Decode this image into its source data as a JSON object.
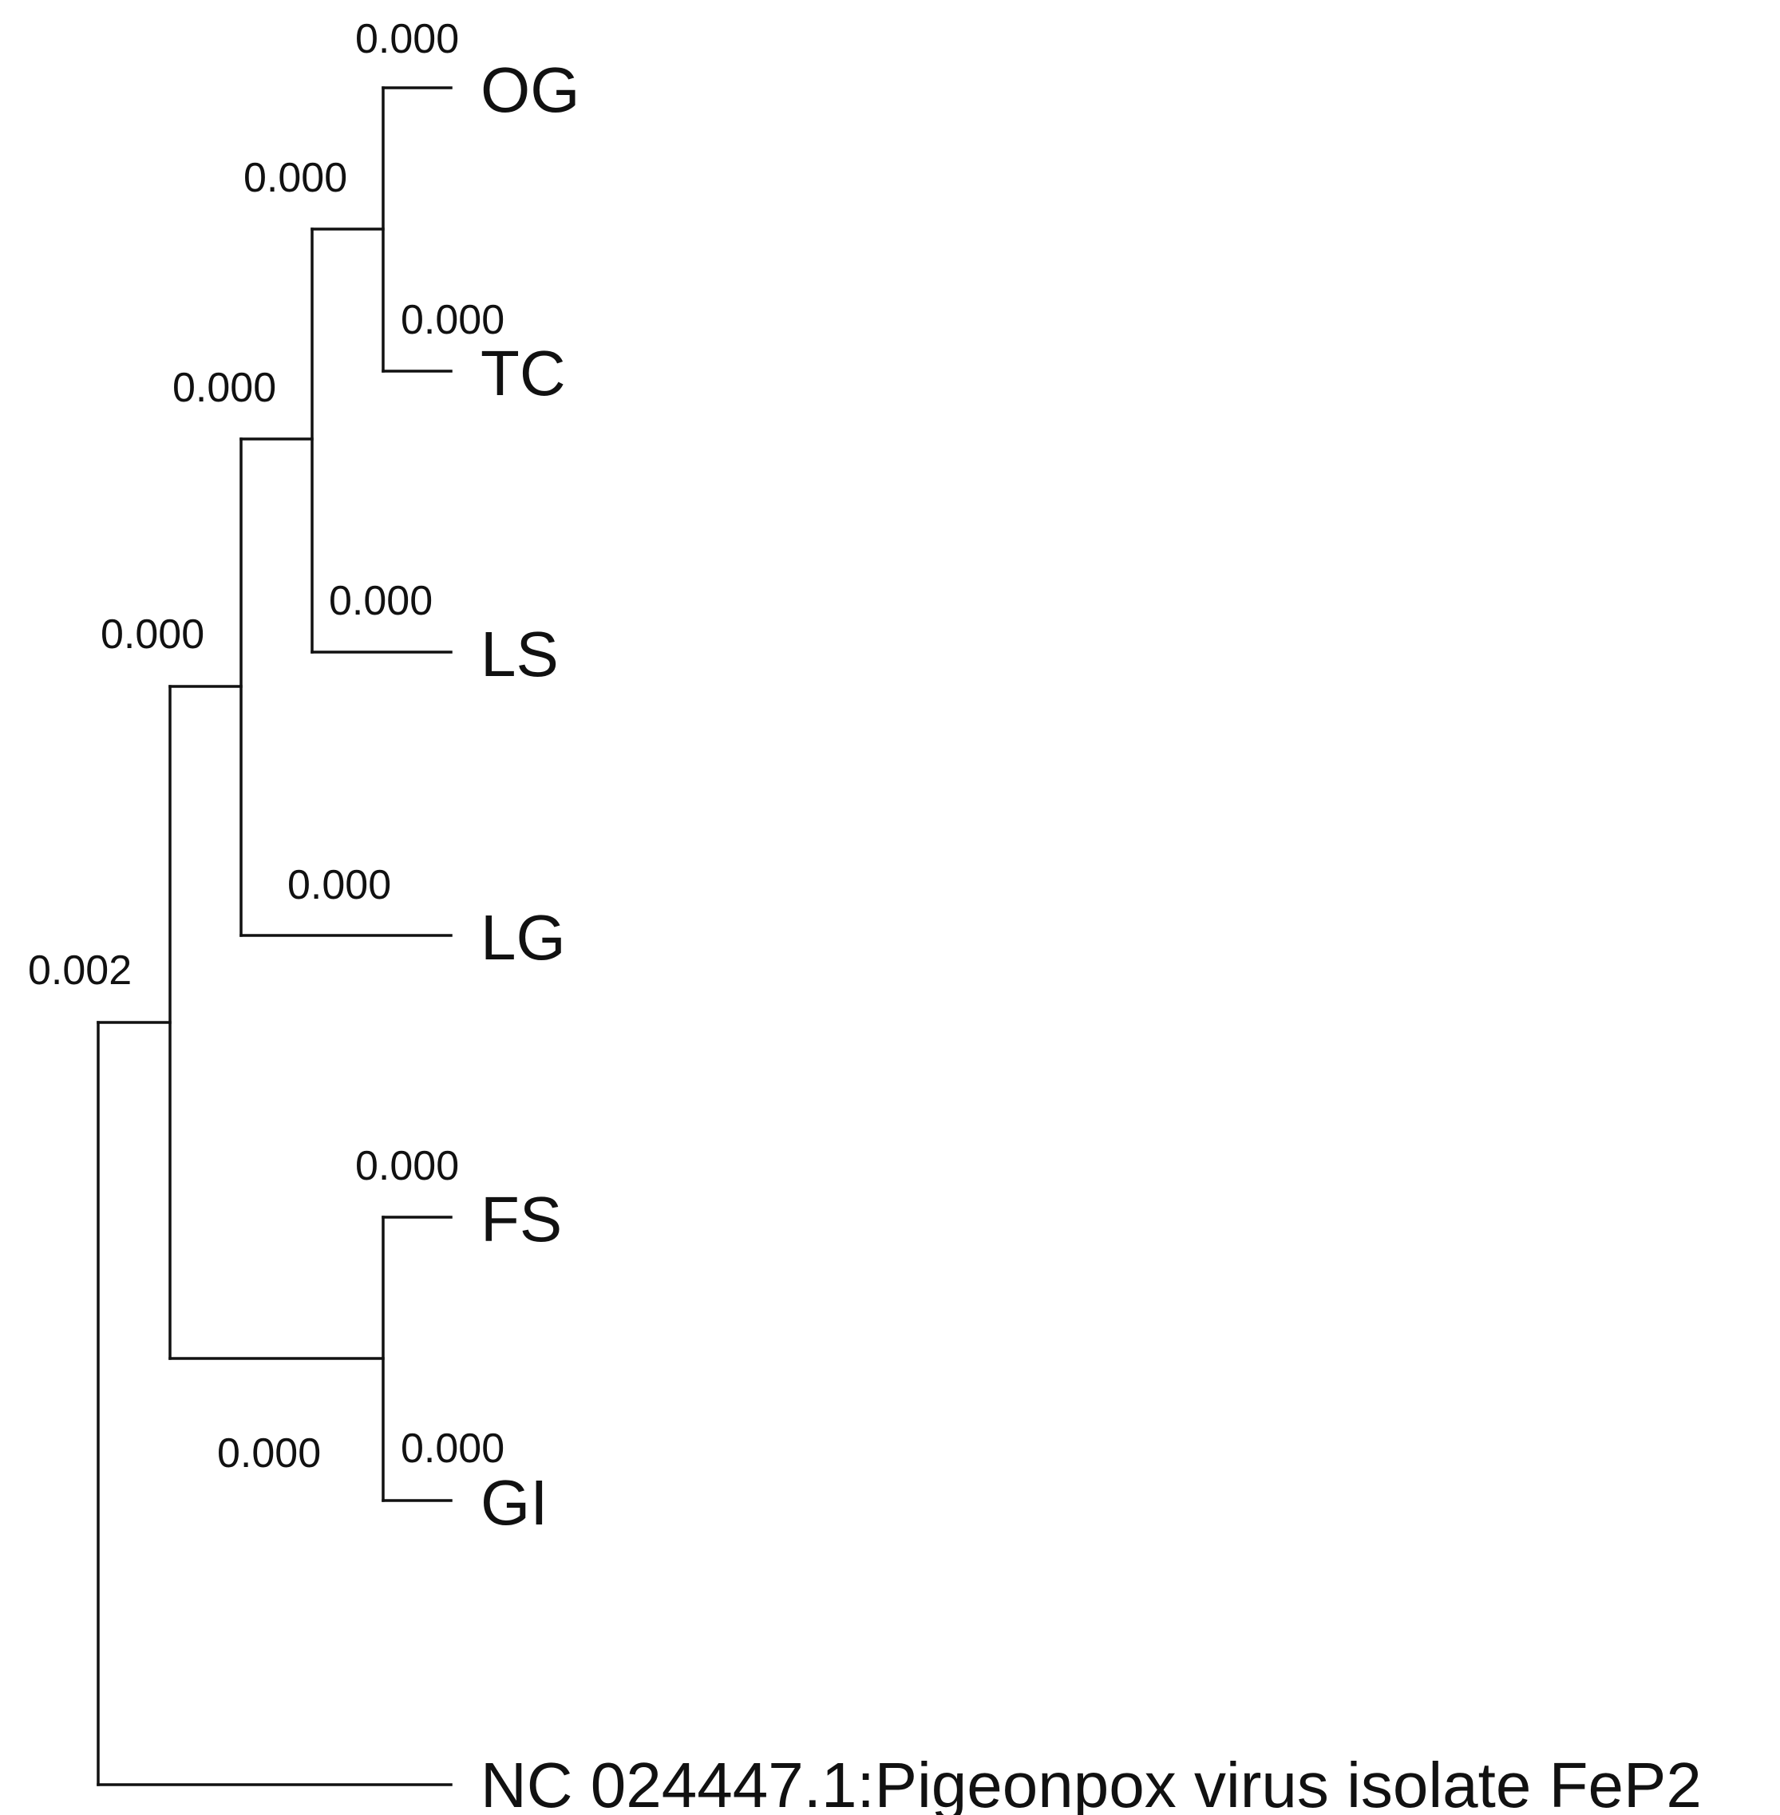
{
  "tree": {
    "taxa": {
      "og": "OG",
      "tc": "TC",
      "ls": "LS",
      "lg": "LG",
      "fs": "FS",
      "gi": "GI",
      "outgroup": "NC 024447.1:Pigeonpox virus isolate FeP2"
    },
    "branch_lengths": {
      "og": "0.000",
      "tc": "0.000",
      "og_tc_clade": "0.000",
      "ls": "0.000",
      "og_tc_ls_clade": "0.000",
      "lg": "0.000",
      "og_tc_ls_lg_clade": "0.000",
      "fs": "0.000",
      "gi": "0.000",
      "fs_gi_clade": "0.000",
      "ingroup": "0.002"
    },
    "colors": {
      "line": "#111111",
      "text": "#111111",
      "background": "#ffffff"
    }
  }
}
